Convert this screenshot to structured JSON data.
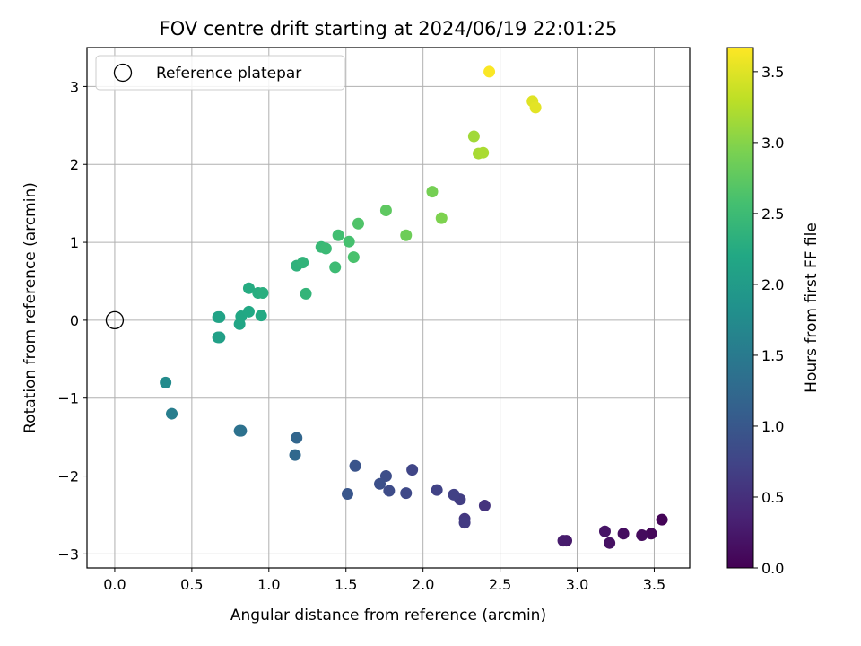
{
  "chart_data": {
    "type": "scatter",
    "title": "FOV centre drift starting at 2024/06/19 22:01:25",
    "xlabel": "Angular distance from reference (arcmin)",
    "ylabel": "Rotation from reference (arcmin)",
    "xlim": [
      -0.18,
      3.73
    ],
    "ylim": [
      -3.18,
      3.5
    ],
    "xticks": [
      0.0,
      0.5,
      1.0,
      1.5,
      2.0,
      2.5,
      3.0,
      3.5
    ],
    "xtick_labels": [
      "0.0",
      "0.5",
      "1.0",
      "1.5",
      "2.0",
      "2.5",
      "3.0",
      "3.5"
    ],
    "yticks": [
      -3,
      -2,
      -1,
      0,
      1,
      2,
      3
    ],
    "ytick_labels": [
      "−3",
      "−2",
      "−1",
      "0",
      "1",
      "2",
      "3"
    ],
    "grid": true,
    "legend": {
      "placement": "top-left",
      "entries": [
        "Reference platepar"
      ]
    },
    "reference": {
      "x": 0.0,
      "y": 0.0,
      "name": "Reference platepar"
    },
    "colorbar": {
      "label": "Hours from first FF file",
      "colormap": "viridis",
      "range": [
        0.0,
        3.67
      ],
      "ticks": [
        0.0,
        0.5,
        1.0,
        1.5,
        2.0,
        2.5,
        3.0,
        3.5
      ],
      "tick_labels": [
        "0.0",
        "0.5",
        "1.0",
        "1.5",
        "2.0",
        "2.5",
        "3.0",
        "3.5"
      ]
    },
    "points": [
      {
        "x": 3.55,
        "y": -2.56,
        "t": 0.03
      },
      {
        "x": 3.48,
        "y": -2.74,
        "t": 0.07
      },
      {
        "x": 3.42,
        "y": -2.76,
        "t": 0.1
      },
      {
        "x": 3.3,
        "y": -2.74,
        "t": 0.13
      },
      {
        "x": 3.21,
        "y": -2.86,
        "t": 0.17
      },
      {
        "x": 3.18,
        "y": -2.71,
        "t": 0.2
      },
      {
        "x": 2.93,
        "y": -2.83,
        "t": 0.25
      },
      {
        "x": 2.91,
        "y": -2.83,
        "t": 0.28
      },
      {
        "x": 2.4,
        "y": -2.38,
        "t": 0.55
      },
      {
        "x": 2.27,
        "y": -2.55,
        "t": 0.6
      },
      {
        "x": 2.27,
        "y": -2.6,
        "t": 0.63
      },
      {
        "x": 2.24,
        "y": -2.3,
        "t": 0.66
      },
      {
        "x": 2.2,
        "y": -2.24,
        "t": 0.7
      },
      {
        "x": 2.09,
        "y": -2.18,
        "t": 0.72
      },
      {
        "x": 1.93,
        "y": -1.92,
        "t": 0.76
      },
      {
        "x": 1.89,
        "y": -2.22,
        "t": 0.8
      },
      {
        "x": 1.78,
        "y": -2.19,
        "t": 0.84
      },
      {
        "x": 1.76,
        "y": -2.0,
        "t": 0.87
      },
      {
        "x": 1.72,
        "y": -2.1,
        "t": 0.9
      },
      {
        "x": 1.56,
        "y": -1.87,
        "t": 0.95
      },
      {
        "x": 1.51,
        "y": -2.23,
        "t": 0.98
      },
      {
        "x": 1.18,
        "y": -1.51,
        "t": 1.2
      },
      {
        "x": 1.17,
        "y": -1.73,
        "t": 1.23
      },
      {
        "x": 0.82,
        "y": -1.42,
        "t": 1.35
      },
      {
        "x": 0.81,
        "y": -1.42,
        "t": 1.38
      },
      {
        "x": 0.37,
        "y": -1.2,
        "t": 1.55
      },
      {
        "x": 0.33,
        "y": -0.8,
        "t": 1.75
      },
      {
        "x": 0.68,
        "y": -0.22,
        "t": 2.05
      },
      {
        "x": 0.67,
        "y": -0.22,
        "t": 2.07
      },
      {
        "x": 0.68,
        "y": 0.04,
        "t": 2.1
      },
      {
        "x": 0.67,
        "y": 0.04,
        "t": 2.12
      },
      {
        "x": 0.81,
        "y": -0.05,
        "t": 2.15
      },
      {
        "x": 0.82,
        "y": 0.05,
        "t": 2.18
      },
      {
        "x": 0.87,
        "y": 0.11,
        "t": 2.2
      },
      {
        "x": 0.95,
        "y": 0.06,
        "t": 2.22
      },
      {
        "x": 0.87,
        "y": 0.41,
        "t": 2.25
      },
      {
        "x": 0.93,
        "y": 0.35,
        "t": 2.28
      },
      {
        "x": 0.96,
        "y": 0.35,
        "t": 2.3
      },
      {
        "x": 1.18,
        "y": 0.7,
        "t": 2.35
      },
      {
        "x": 1.22,
        "y": 0.74,
        "t": 2.38
      },
      {
        "x": 1.24,
        "y": 0.34,
        "t": 2.4
      },
      {
        "x": 1.34,
        "y": 0.94,
        "t": 2.45
      },
      {
        "x": 1.37,
        "y": 0.92,
        "t": 2.48
      },
      {
        "x": 1.43,
        "y": 0.68,
        "t": 2.5
      },
      {
        "x": 1.45,
        "y": 1.09,
        "t": 2.55
      },
      {
        "x": 1.52,
        "y": 1.01,
        "t": 2.58
      },
      {
        "x": 1.55,
        "y": 0.81,
        "t": 2.6
      },
      {
        "x": 1.58,
        "y": 1.24,
        "t": 2.65
      },
      {
        "x": 1.76,
        "y": 1.41,
        "t": 2.75
      },
      {
        "x": 1.89,
        "y": 1.09,
        "t": 2.85
      },
      {
        "x": 2.06,
        "y": 1.65,
        "t": 2.9
      },
      {
        "x": 2.12,
        "y": 1.31,
        "t": 2.95
      },
      {
        "x": 2.33,
        "y": 2.36,
        "t": 3.15
      },
      {
        "x": 2.36,
        "y": 2.14,
        "t": 3.18
      },
      {
        "x": 2.39,
        "y": 2.15,
        "t": 3.2
      },
      {
        "x": 2.43,
        "y": 3.19,
        "t": 3.65
      },
      {
        "x": 2.71,
        "y": 2.81,
        "t": 3.5
      },
      {
        "x": 2.73,
        "y": 2.73,
        "t": 3.52
      }
    ]
  }
}
